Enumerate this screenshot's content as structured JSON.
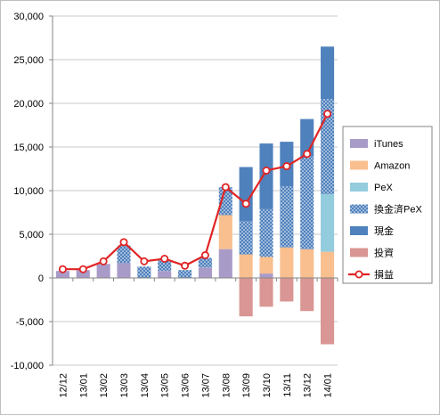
{
  "chart_data": {
    "type": "bar",
    "stacked": true,
    "categories": [
      "12/12",
      "13/01",
      "13/02",
      "13/03",
      "13/04",
      "13/05",
      "13/06",
      "13/07",
      "13/08",
      "13/09",
      "13/10",
      "13/11",
      "13/12",
      "14/01"
    ],
    "ylim": [
      -10000,
      30000
    ],
    "yticks": [
      -10000,
      -5000,
      0,
      5000,
      10000,
      15000,
      20000,
      25000,
      30000
    ],
    "ytick_labels": [
      "-10,000",
      "-5,000",
      "0",
      "5,000",
      "10,000",
      "15,000",
      "20,000",
      "25,000",
      "30,000"
    ],
    "grid": "horizontal",
    "legend_position": "right",
    "series": [
      {
        "name": "iTunes",
        "kind": "bar",
        "color": "#a99bc8",
        "pattern": "none",
        "values": [
          800,
          900,
          1600,
          1700,
          0,
          800,
          0,
          1200,
          3300,
          0,
          500,
          0,
          0,
          0
        ]
      },
      {
        "name": "Amazon",
        "kind": "bar",
        "color": "#f9bf8f",
        "pattern": "none",
        "values": [
          0,
          0,
          0,
          0,
          0,
          0,
          0,
          0,
          3900,
          2700,
          1900,
          3500,
          3300,
          3000
        ]
      },
      {
        "name": "PeX",
        "kind": "bar",
        "color": "#93cddd",
        "pattern": "none",
        "values": [
          0,
          0,
          0,
          0,
          0,
          0,
          0,
          0,
          0,
          0,
          0,
          0,
          0,
          6600
        ]
      },
      {
        "name": "換金済PeX",
        "kind": "bar",
        "color": "#4f81bd",
        "pattern": "dots",
        "values": [
          0,
          0,
          0,
          2000,
          1300,
          1200,
          900,
          1100,
          3200,
          3800,
          5500,
          7000,
          10600,
          10900
        ]
      },
      {
        "name": "現金",
        "kind": "bar",
        "color": "#4f81bd",
        "pattern": "none",
        "values": [
          0,
          0,
          0,
          0,
          0,
          0,
          0,
          0,
          0,
          6200,
          7500,
          5100,
          4300,
          6000
        ]
      },
      {
        "name": "投資",
        "kind": "bar",
        "color": "#d99694",
        "pattern": "none",
        "values": [
          0,
          0,
          0,
          0,
          0,
          0,
          0,
          0,
          0,
          -4400,
          -3300,
          -2700,
          -3800,
          -7600
        ]
      },
      {
        "name": "損益",
        "kind": "line",
        "color": "#e02424",
        "marker": "circle",
        "values": [
          1000,
          1000,
          1900,
          4100,
          1900,
          2200,
          1400,
          2600,
          10400,
          8500,
          12300,
          12800,
          14200,
          18800
        ]
      }
    ]
  }
}
